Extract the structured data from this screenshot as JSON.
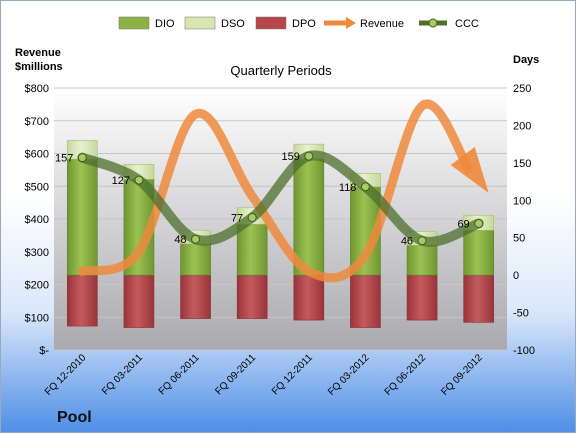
{
  "chart_data": {
    "type": "bar",
    "title": "Quarterly Periods",
    "company": "Pool",
    "left_axis_label": [
      "Revenue",
      "$millions"
    ],
    "right_axis_label": "Days",
    "left_ticks": [
      "$-",
      "$100",
      "$200",
      "$300",
      "$400",
      "$500",
      "$600",
      "$700",
      "$800"
    ],
    "right_ticks": [
      "-100",
      "-50",
      "0",
      "50",
      "100",
      "150",
      "200",
      "250"
    ],
    "left_ylim": [
      0,
      800
    ],
    "right_ylim": [
      -100,
      250
    ],
    "categories": [
      "FQ 12-2010",
      "FQ 03-2011",
      "FQ 06-2011",
      "FQ 09-2011",
      "FQ 12-2011",
      "FQ 03-2012",
      "FQ 06-2012",
      "FQ 09-2012"
    ],
    "legend_position": "top",
    "grid": true,
    "series": [
      {
        "name": "DIO",
        "kind": "stacked-bar",
        "axis": "right",
        "color": "#8cb241",
        "values": [
          155,
          128,
          42,
          68,
          155,
          118,
          40,
          60
        ]
      },
      {
        "name": "DSO",
        "kind": "stacked-bar",
        "axis": "right",
        "color": "#d8e6b0",
        "values": [
          25,
          20,
          18,
          22,
          20,
          18,
          18,
          20
        ]
      },
      {
        "name": "DPO",
        "kind": "bar-below-zero",
        "axis": "right",
        "color": "#b5474b",
        "values": [
          -68,
          -70,
          -58,
          -58,
          -60,
          -70,
          -60,
          -63
        ]
      },
      {
        "name": "Revenue",
        "kind": "line",
        "axis": "left",
        "color": "#ed8a3c",
        "values": [
          240,
          300,
          720,
          470,
          240,
          290,
          745,
          510
        ]
      },
      {
        "name": "CCC",
        "kind": "line",
        "axis": "right",
        "color": "#4e6f2c",
        "values": [
          157,
          127,
          48,
          77,
          159,
          118,
          46,
          69
        ],
        "labels": [
          "157",
          "127",
          "48",
          "77",
          "159",
          "118",
          "46",
          "69"
        ]
      }
    ]
  }
}
